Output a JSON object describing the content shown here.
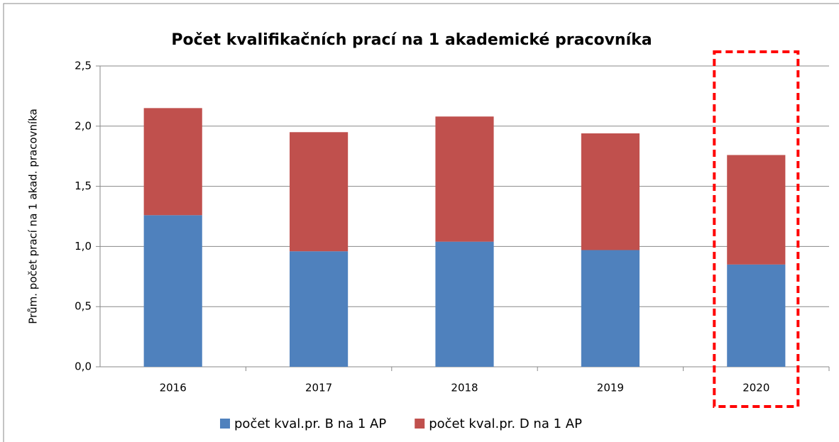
{
  "chart_data": {
    "type": "stacked_bar",
    "title": "Počet kvalifikačních prací na 1 akademické pracovníka",
    "y_label": "Prům. počet prací na 1 akad. pracovníka",
    "categories": [
      "2016",
      "2017",
      "2018",
      "2019",
      "2020"
    ],
    "series": [
      {
        "name": "počet kval.pr. B na 1 AP",
        "color": "#4f81bd",
        "values": [
          1.26,
          0.96,
          1.04,
          0.97,
          0.85
        ]
      },
      {
        "name": "počet kval.pr. D na 1 AP",
        "color": "#c0504d",
        "values": [
          0.89,
          0.99,
          1.04,
          0.97,
          0.91
        ]
      }
    ],
    "ylim": [
      0,
      2.5
    ],
    "yticks": [
      {
        "value": 0,
        "label": "0,0"
      },
      {
        "value": 0.5,
        "label": "0,5"
      },
      {
        "value": 1,
        "label": "1,0"
      },
      {
        "value": 1.5,
        "label": "1,5"
      },
      {
        "value": 2,
        "label": "2,0"
      },
      {
        "value": 2.5,
        "label": "2,5"
      }
    ],
    "grid": true,
    "legend": "bottom"
  }
}
